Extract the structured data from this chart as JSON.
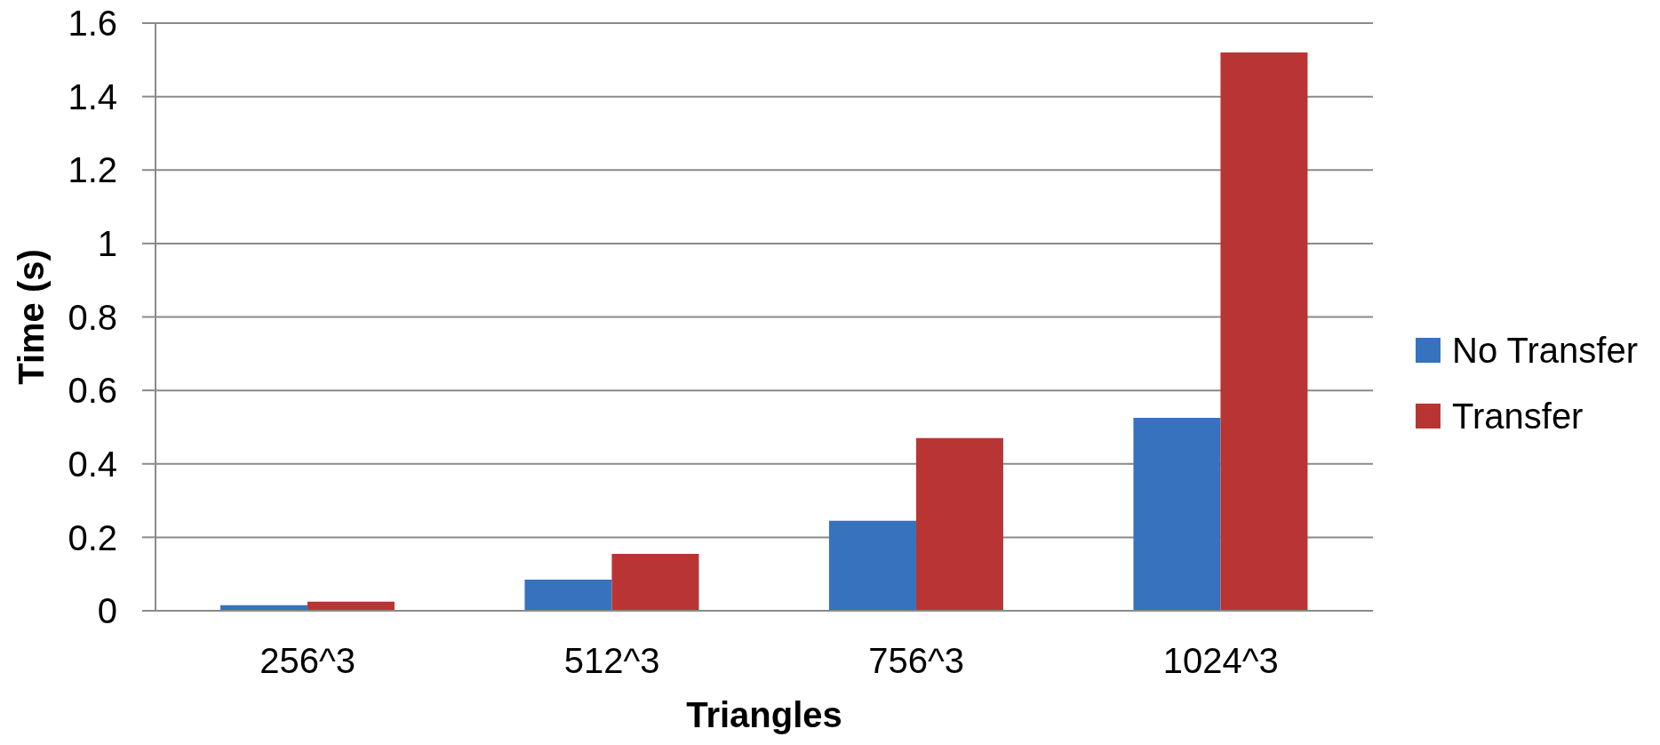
{
  "chart_data": {
    "type": "bar",
    "xlabel": "Triangles",
    "ylabel": "Time (s)",
    "categories": [
      "256^3",
      "512^3",
      "756^3",
      "1024^3"
    ],
    "series": [
      {
        "name": "No Transfer",
        "color": "#3672bd",
        "values": [
          0.015,
          0.085,
          0.245,
          0.525
        ]
      },
      {
        "name": "Transfer",
        "color": "#b93533",
        "values": [
          0.025,
          0.155,
          0.47,
          1.52
        ]
      }
    ],
    "ylim": [
      0,
      1.6
    ],
    "yticks": [
      0,
      0.2,
      0.4,
      0.6,
      0.8,
      1,
      1.2,
      1.4,
      1.6
    ],
    "grid": "y",
    "legend": "right"
  }
}
